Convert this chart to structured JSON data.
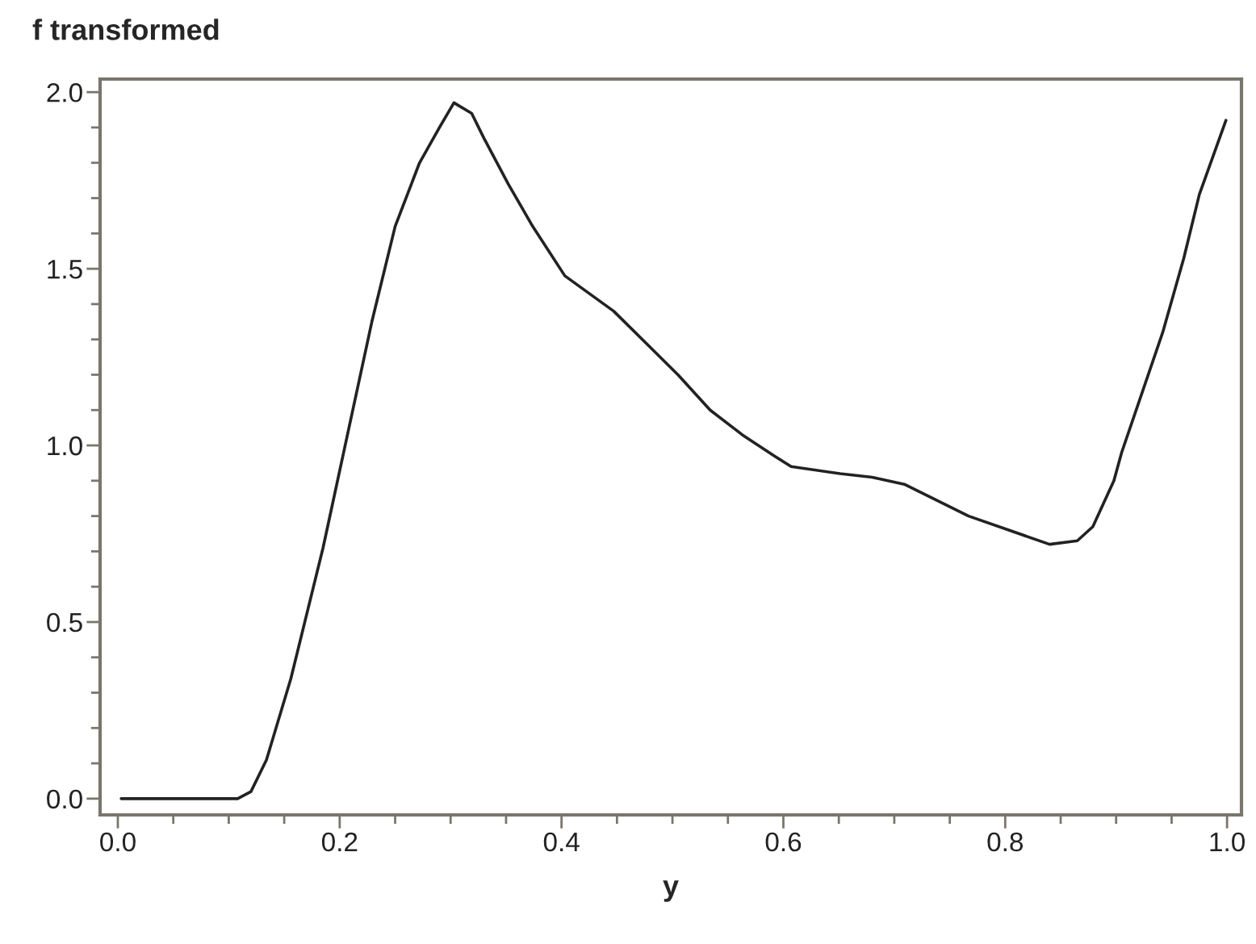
{
  "chart_data": {
    "type": "line",
    "xlabel": "y",
    "ylabel": "f transformed",
    "x": [
      0.003,
      0.108,
      0.12,
      0.134,
      0.156,
      0.185,
      0.207,
      0.229,
      0.25,
      0.272,
      0.29,
      0.303,
      0.319,
      0.33,
      0.352,
      0.374,
      0.403,
      0.447,
      0.476,
      0.505,
      0.534,
      0.563,
      0.592,
      0.607,
      0.651,
      0.68,
      0.709,
      0.767,
      0.84,
      0.865,
      0.879,
      0.898,
      0.905,
      0.942,
      0.961,
      0.975,
      0.999
    ],
    "series": [
      {
        "color": "#222222",
        "values": [
          0,
          0,
          0.02,
          0.11,
          0.34,
          0.71,
          1.03,
          1.35,
          1.62,
          1.8,
          1.9,
          1.97,
          1.94,
          1.87,
          1.74,
          1.62,
          1.48,
          1.38,
          1.29,
          1.2,
          1.1,
          1.03,
          0.97,
          0.94,
          0.92,
          0.91,
          0.89,
          0.8,
          0.72,
          0.73,
          0.77,
          0.9,
          0.98,
          1.32,
          1.53,
          1.71,
          1.92
        ]
      }
    ],
    "xlim": [
      -0.016,
      1.013
    ],
    "ylim": [
      -0.046,
      2.037
    ],
    "xticks": [
      {
        "value": 0,
        "label": "0.0"
      },
      {
        "value": 0.05,
        "label": null
      },
      {
        "value": 0.1,
        "label": null
      },
      {
        "value": 0.15,
        "label": null
      },
      {
        "value": 0.2,
        "label": "0.2"
      },
      {
        "value": 0.25,
        "label": null
      },
      {
        "value": 0.3,
        "label": null
      },
      {
        "value": 0.35,
        "label": null
      },
      {
        "value": 0.4,
        "label": "0.4"
      },
      {
        "value": 0.45,
        "label": null
      },
      {
        "value": 0.5,
        "label": null
      },
      {
        "value": 0.55,
        "label": null
      },
      {
        "value": 0.6,
        "label": "0.6"
      },
      {
        "value": 0.65,
        "label": null
      },
      {
        "value": 0.7,
        "label": null
      },
      {
        "value": 0.75,
        "label": null
      },
      {
        "value": 0.8,
        "label": "0.8"
      },
      {
        "value": 0.85,
        "label": null
      },
      {
        "value": 0.9,
        "label": null
      },
      {
        "value": 0.95,
        "label": null
      },
      {
        "value": 1,
        "label": "1.0"
      }
    ],
    "yticks": [
      {
        "value": 0,
        "label": "0.0"
      },
      {
        "value": 0.1,
        "label": null
      },
      {
        "value": 0.2,
        "label": null
      },
      {
        "value": 0.3,
        "label": null
      },
      {
        "value": 0.4,
        "label": null
      },
      {
        "value": 0.5,
        "label": "0.5"
      },
      {
        "value": 0.6,
        "label": null
      },
      {
        "value": 0.7,
        "label": null
      },
      {
        "value": 0.8,
        "label": null
      },
      {
        "value": 0.9,
        "label": null
      },
      {
        "value": 1,
        "label": "1.0"
      },
      {
        "value": 1.1,
        "label": null
      },
      {
        "value": 1.2,
        "label": null
      },
      {
        "value": 1.3,
        "label": null
      },
      {
        "value": 1.4,
        "label": null
      },
      {
        "value": 1.5,
        "label": "1.5"
      },
      {
        "value": 1.6,
        "label": null
      },
      {
        "value": 1.7,
        "label": null
      },
      {
        "value": 1.8,
        "label": null
      },
      {
        "value": 1.9,
        "label": null
      },
      {
        "value": 2,
        "label": "2.0"
      }
    ],
    "grid": false,
    "legend": false
  }
}
